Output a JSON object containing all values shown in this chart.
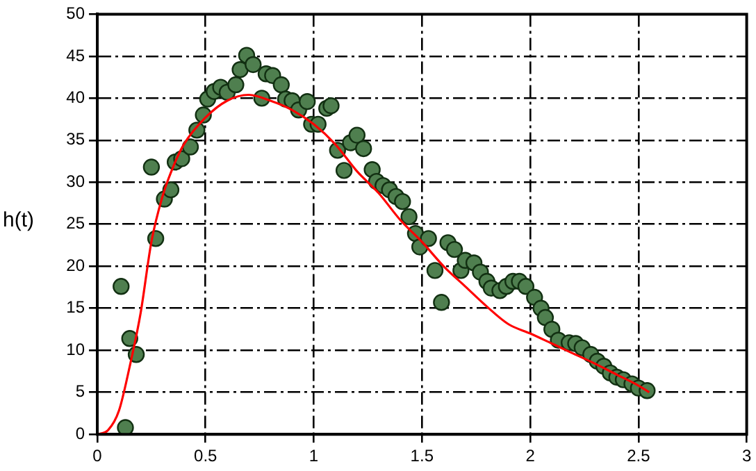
{
  "chart_data": {
    "type": "scatter",
    "ylabel": "h(t)",
    "xlim": [
      0,
      3
    ],
    "xticks": [
      0,
      0.5,
      1,
      1.5,
      2,
      2.5,
      3
    ],
    "ylim": [
      0,
      50
    ],
    "yticks": [
      0,
      5,
      10,
      15,
      20,
      25,
      30,
      35,
      40,
      45,
      50
    ],
    "grid": true,
    "legend": false,
    "marker": "circle",
    "series": [
      {
        "color": "#4f7f4f",
        "x": [
          0.11,
          0.15,
          0.18,
          0.13,
          0.25,
          0.27,
          0.31,
          0.34,
          0.36,
          0.39,
          0.43,
          0.46,
          0.49,
          0.51,
          0.54,
          0.57,
          0.6,
          0.64,
          0.66,
          0.69,
          0.72,
          0.76,
          0.78,
          0.81,
          0.85,
          0.87,
          0.9,
          0.93,
          0.97,
          0.99,
          1.02,
          1.06,
          1.08,
          1.11,
          1.14,
          1.17,
          1.2,
          1.23,
          1.27,
          1.29,
          1.32,
          1.35,
          1.38,
          1.41,
          1.44,
          1.47,
          1.49,
          1.53,
          1.56,
          1.59,
          1.62,
          1.65,
          1.68,
          1.7,
          1.74,
          1.77,
          1.8,
          1.82,
          1.86,
          1.89,
          1.92,
          1.95,
          1.98,
          2.02,
          2.05,
          2.07,
          2.1,
          2.13,
          2.18,
          2.21,
          2.24,
          2.28,
          2.31,
          2.34,
          2.37,
          2.4,
          2.43,
          2.47,
          2.5,
          2.54
        ],
        "values": [
          17.6,
          11.4,
          9.5,
          0.8,
          31.8,
          23.3,
          28.0,
          29.1,
          32.4,
          32.8,
          34.2,
          36.2,
          38.0,
          39.9,
          40.8,
          41.3,
          40.7,
          41.6,
          43.4,
          45.1,
          44.0,
          40.0,
          42.9,
          42.7,
          41.6,
          39.9,
          39.7,
          38.6,
          39.6,
          36.9,
          36.9,
          38.8,
          39.1,
          33.8,
          31.4,
          34.7,
          35.6,
          34.0,
          31.5,
          30.1,
          29.6,
          29.1,
          28.3,
          27.7,
          25.9,
          23.9,
          22.3,
          23.3,
          19.5,
          15.7,
          22.8,
          22.0,
          19.5,
          20.7,
          20.4,
          19.3,
          18.2,
          17.4,
          17.1,
          17.6,
          18.2,
          18.2,
          17.6,
          16.3,
          15.0,
          13.9,
          12.5,
          11.2,
          10.9,
          10.8,
          10.3,
          9.5,
          8.7,
          8.1,
          7.3,
          6.8,
          6.5,
          6.0,
          5.5,
          5.2
        ]
      },
      {
        "type": "line",
        "color": "#ff0000",
        "marker": "none",
        "line_style": "solid",
        "x": [
          0,
          0.05,
          0.1,
          0.15,
          0.2,
          0.25,
          0.3,
          0.35,
          0.4,
          0.5,
          0.6,
          0.7,
          0.8,
          0.9,
          1.0,
          1.1,
          1.2,
          1.3,
          1.4,
          1.5,
          1.6,
          1.7,
          1.8,
          1.9,
          2.0,
          2.1,
          2.2,
          2.3,
          2.4,
          2.5,
          2.55
        ],
        "values": [
          0,
          0.5,
          2.8,
          8.1,
          14.4,
          22.9,
          28.2,
          31.8,
          34.5,
          37.7,
          39.7,
          40.4,
          39.7,
          38.6,
          36.9,
          34.5,
          31.3,
          28.7,
          25.5,
          22.9,
          20.0,
          17.6,
          15.2,
          13.1,
          12.0,
          10.8,
          9.6,
          8.4,
          7.1,
          5.8,
          5.0
        ]
      }
    ]
  }
}
